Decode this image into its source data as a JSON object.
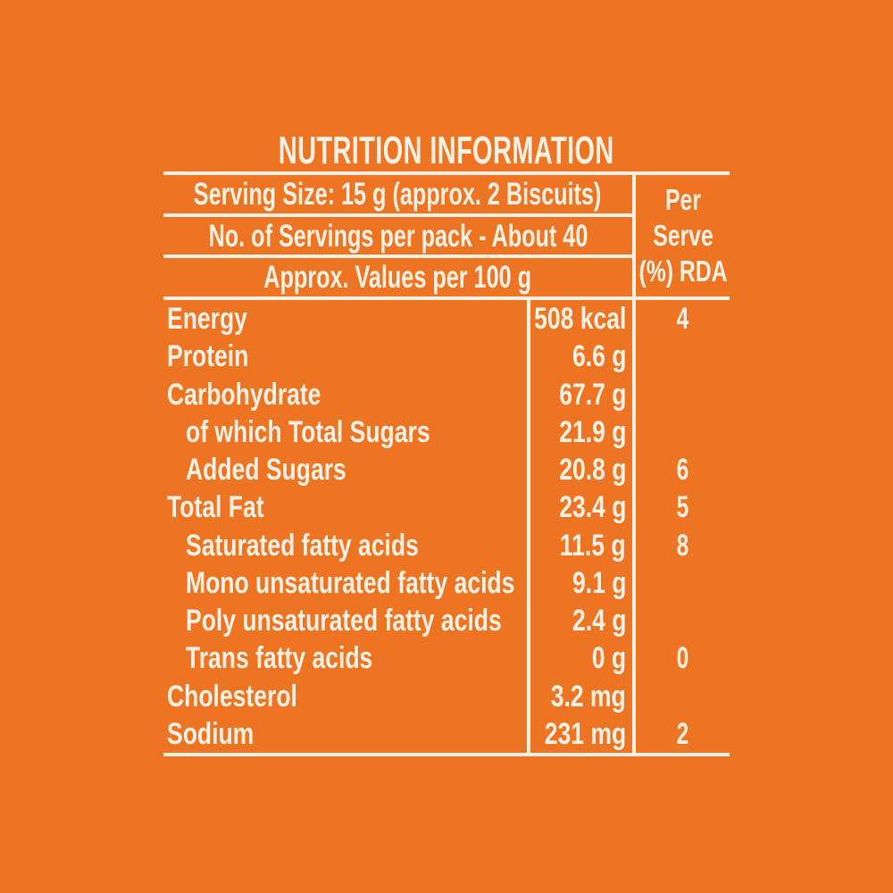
{
  "colors": {
    "background": "#ED7423",
    "text": "#F8F0E2"
  },
  "title": "NUTRITION INFORMATION",
  "table": {
    "header_rows": {
      "serving_size": "Serving Size: 15 g (approx. 2 Biscuits)",
      "servings_per_pack": "No. of Servings per pack - About 40",
      "approx_values": "Approx. Values per 100 g"
    },
    "per_serve_header": {
      "lines": [
        "Per",
        "Serve",
        "(%) RDA"
      ]
    },
    "rows": [
      {
        "label": "Energy",
        "value": "508 kcal",
        "rda": "4",
        "indent": false
      },
      {
        "label": "Protein",
        "value": "6.6 g",
        "rda": "",
        "indent": false
      },
      {
        "label": "Carbohydrate",
        "value": "67.7 g",
        "rda": "",
        "indent": false
      },
      {
        "label": "of which Total Sugars",
        "value": "21.9 g",
        "rda": "",
        "indent": true
      },
      {
        "label": "Added Sugars",
        "value": "20.8 g",
        "rda": "6",
        "indent": true
      },
      {
        "label": "Total Fat",
        "value": "23.4 g",
        "rda": "5",
        "indent": false
      },
      {
        "label": "Saturated fatty acids",
        "value": "11.5 g",
        "rda": "8",
        "indent": true
      },
      {
        "label": "Mono unsaturated fatty acids",
        "value": "9.1 g",
        "rda": "",
        "indent": true
      },
      {
        "label": "Poly unsaturated fatty acids",
        "value": "2.4 g",
        "rda": "",
        "indent": true
      },
      {
        "label": "Trans fatty acids",
        "value": "0 g",
        "rda": "0",
        "indent": true
      },
      {
        "label": "Cholesterol",
        "value": "3.2 mg",
        "rda": "",
        "indent": false
      },
      {
        "label": "Sodium",
        "value": "231 mg",
        "rda": "2",
        "indent": false
      }
    ]
  }
}
